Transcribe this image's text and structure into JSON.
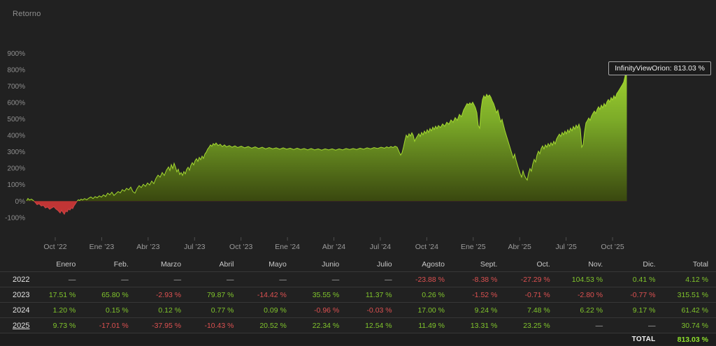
{
  "page": {
    "title_label": "Retorno"
  },
  "chart_data": {
    "type": "area",
    "title": "Retorno",
    "series_name": "InfinityViewOrion",
    "tooltip_text": "InfinityViewOrion: 813.03 %",
    "final_value_pct": 813.03,
    "ylim": [
      -100,
      900
    ],
    "y_ticks": [
      "900%",
      "800%",
      "700%",
      "600%",
      "500%",
      "400%",
      "300%",
      "200%",
      "100%",
      "0%",
      "-100%"
    ],
    "x_ticks": [
      "Oct ’22",
      "Ene ’23",
      "Abr ’23",
      "Jul ’23",
      "Oct ’23",
      "Ene ’24",
      "Abr ’24",
      "Jul ’24",
      "Oct ’24",
      "Ene ’25",
      "Abr ’25",
      "Jul ’25",
      "Oct ’25"
    ],
    "colors": {
      "positive_top": "#acdf33",
      "positive_mid": "#7cab28",
      "positive_bottom": "#39470f",
      "negative_fill": "#c13535",
      "line_positive": "#a3d82f",
      "line_negative": "#d04545"
    },
    "x_unit": "px along time axis Aug 2022 - Nov 2025",
    "y_unit": "cumulative return %",
    "points": [
      [
        38,
        2
      ],
      [
        40,
        16
      ],
      [
        42,
        6
      ],
      [
        45,
        12
      ],
      [
        48,
        2
      ],
      [
        50,
        -6
      ],
      [
        53,
        -22
      ],
      [
        56,
        -16
      ],
      [
        59,
        -30
      ],
      [
        62,
        -26
      ],
      [
        65,
        -42
      ],
      [
        68,
        -36
      ],
      [
        71,
        -50
      ],
      [
        74,
        -42
      ],
      [
        77,
        -34
      ],
      [
        80,
        -48
      ],
      [
        83,
        -58
      ],
      [
        86,
        -72
      ],
      [
        88,
        -56
      ],
      [
        90,
        -68
      ],
      [
        92,
        -80
      ],
      [
        94,
        -60
      ],
      [
        96,
        -66
      ],
      [
        98,
        -48
      ],
      [
        100,
        -55
      ],
      [
        102,
        -42
      ],
      [
        104,
        -46
      ],
      [
        106,
        -28
      ],
      [
        108,
        -16
      ],
      [
        110,
        -2
      ],
      [
        112,
        8
      ],
      [
        114,
        3
      ],
      [
        116,
        12
      ],
      [
        118,
        6
      ],
      [
        121,
        15
      ],
      [
        124,
        8
      ],
      [
        127,
        18
      ],
      [
        130,
        25
      ],
      [
        133,
        15
      ],
      [
        136,
        27
      ],
      [
        139,
        20
      ],
      [
        142,
        32
      ],
      [
        145,
        24
      ],
      [
        148,
        38
      ],
      [
        151,
        28
      ],
      [
        154,
        48
      ],
      [
        157,
        38
      ],
      [
        160,
        54
      ],
      [
        163,
        34
      ],
      [
        166,
        46
      ],
      [
        169,
        58
      ],
      [
        172,
        50
      ],
      [
        175,
        70
      ],
      [
        178,
        60
      ],
      [
        181,
        78
      ],
      [
        184,
        68
      ],
      [
        187,
        85
      ],
      [
        190,
        58
      ],
      [
        193,
        48
      ],
      [
        196,
        76
      ],
      [
        199,
        94
      ],
      [
        202,
        82
      ],
      [
        205,
        102
      ],
      [
        208,
        90
      ],
      [
        211,
        110
      ],
      [
        214,
        98
      ],
      [
        217,
        122
      ],
      [
        220,
        106
      ],
      [
        223,
        138
      ],
      [
        226,
        158
      ],
      [
        229,
        146
      ],
      [
        232,
        174
      ],
      [
        235,
        156
      ],
      [
        238,
        188
      ],
      [
        241,
        208
      ],
      [
        243,
        186
      ],
      [
        245,
        222
      ],
      [
        247,
        198
      ],
      [
        249,
        230
      ],
      [
        251,
        206
      ],
      [
        253,
        178
      ],
      [
        255,
        194
      ],
      [
        257,
        162
      ],
      [
        259,
        174
      ],
      [
        261,
        156
      ],
      [
        263,
        180
      ],
      [
        265,
        166
      ],
      [
        267,
        194
      ],
      [
        269,
        206
      ],
      [
        271,
        188
      ],
      [
        273,
        218
      ],
      [
        275,
        234
      ],
      [
        277,
        220
      ],
      [
        279,
        246
      ],
      [
        281,
        258
      ],
      [
        283,
        242
      ],
      [
        285,
        266
      ],
      [
        287,
        252
      ],
      [
        289,
        274
      ],
      [
        291,
        260
      ],
      [
        293,
        286
      ],
      [
        295,
        298
      ],
      [
        297,
        316
      ],
      [
        299,
        328
      ],
      [
        301,
        342
      ],
      [
        303,
        334
      ],
      [
        305,
        350
      ],
      [
        307,
        342
      ],
      [
        309,
        354
      ],
      [
        312,
        338
      ],
      [
        315,
        346
      ],
      [
        318,
        332
      ],
      [
        321,
        342
      ],
      [
        324,
        330
      ],
      [
        328,
        338
      ],
      [
        332,
        328
      ],
      [
        336,
        336
      ],
      [
        340,
        326
      ],
      [
        345,
        334
      ],
      [
        350,
        324
      ],
      [
        355,
        332
      ],
      [
        360,
        322
      ],
      [
        365,
        330
      ],
      [
        370,
        320
      ],
      [
        375,
        328
      ],
      [
        380,
        318
      ],
      [
        385,
        326
      ],
      [
        390,
        318
      ],
      [
        395,
        324
      ],
      [
        400,
        316
      ],
      [
        405,
        324
      ],
      [
        410,
        316
      ],
      [
        415,
        322
      ],
      [
        420,
        314
      ],
      [
        425,
        322
      ],
      [
        430,
        314
      ],
      [
        435,
        320
      ],
      [
        440,
        312
      ],
      [
        445,
        320
      ],
      [
        450,
        312
      ],
      [
        455,
        318
      ],
      [
        460,
        310
      ],
      [
        465,
        318
      ],
      [
        470,
        312
      ],
      [
        475,
        318
      ],
      [
        480,
        310
      ],
      [
        485,
        318
      ],
      [
        490,
        312
      ],
      [
        495,
        320
      ],
      [
        500,
        314
      ],
      [
        505,
        320
      ],
      [
        510,
        314
      ],
      [
        515,
        322
      ],
      [
        520,
        316
      ],
      [
        525,
        324
      ],
      [
        530,
        318
      ],
      [
        535,
        326
      ],
      [
        540,
        320
      ],
      [
        545,
        328
      ],
      [
        550,
        322
      ],
      [
        553,
        330
      ],
      [
        556,
        324
      ],
      [
        559,
        332
      ],
      [
        562,
        326
      ],
      [
        565,
        334
      ],
      [
        568,
        328
      ],
      [
        571,
        298
      ],
      [
        573,
        280
      ],
      [
        575,
        294
      ],
      [
        577,
        328
      ],
      [
        579,
        368
      ],
      [
        581,
        402
      ],
      [
        583,
        388
      ],
      [
        585,
        410
      ],
      [
        587,
        396
      ],
      [
        589,
        416
      ],
      [
        591,
        400
      ],
      [
        593,
        364
      ],
      [
        595,
        382
      ],
      [
        597,
        396
      ],
      [
        599,
        410
      ],
      [
        601,
        394
      ],
      [
        603,
        418
      ],
      [
        605,
        404
      ],
      [
        607,
        426
      ],
      [
        609,
        412
      ],
      [
        611,
        434
      ],
      [
        613,
        418
      ],
      [
        615,
        442
      ],
      [
        617,
        428
      ],
      [
        619,
        450
      ],
      [
        621,
        436
      ],
      [
        623,
        456
      ],
      [
        625,
        442
      ],
      [
        627,
        460
      ],
      [
        630,
        448
      ],
      [
        633,
        470
      ],
      [
        636,
        456
      ],
      [
        639,
        480
      ],
      [
        642,
        468
      ],
      [
        645,
        494
      ],
      [
        648,
        480
      ],
      [
        651,
        508
      ],
      [
        654,
        492
      ],
      [
        657,
        528
      ],
      [
        660,
        514
      ],
      [
        663,
        554
      ],
      [
        666,
        578
      ],
      [
        668,
        594
      ],
      [
        670,
        586
      ],
      [
        672,
        598
      ],
      [
        674,
        588
      ],
      [
        676,
        602
      ],
      [
        678,
        586
      ],
      [
        680,
        568
      ],
      [
        682,
        538
      ],
      [
        684,
        460
      ],
      [
        686,
        444
      ],
      [
        688,
        558
      ],
      [
        690,
        618
      ],
      [
        692,
        642
      ],
      [
        694,
        628
      ],
      [
        696,
        650
      ],
      [
        698,
        636
      ],
      [
        700,
        646
      ],
      [
        702,
        632
      ],
      [
        704,
        610
      ],
      [
        706,
        594
      ],
      [
        708,
        568
      ],
      [
        710,
        538
      ],
      [
        712,
        554
      ],
      [
        714,
        518
      ],
      [
        716,
        482
      ],
      [
        718,
        498
      ],
      [
        720,
        464
      ],
      [
        722,
        430
      ],
      [
        724,
        402
      ],
      [
        726,
        374
      ],
      [
        728,
        346
      ],
      [
        730,
        318
      ],
      [
        732,
        290
      ],
      [
        734,
        262
      ],
      [
        736,
        286
      ],
      [
        738,
        250
      ],
      [
        740,
        220
      ],
      [
        742,
        192
      ],
      [
        744,
        166
      ],
      [
        746,
        146
      ],
      [
        748,
        184
      ],
      [
        750,
        156
      ],
      [
        752,
        140
      ],
      [
        754,
        128
      ],
      [
        756,
        170
      ],
      [
        758,
        198
      ],
      [
        760,
        182
      ],
      [
        762,
        226
      ],
      [
        764,
        254
      ],
      [
        766,
        238
      ],
      [
        768,
        280
      ],
      [
        770,
        304
      ],
      [
        772,
        288
      ],
      [
        774,
        320
      ],
      [
        776,
        336
      ],
      [
        778,
        318
      ],
      [
        780,
        342
      ],
      [
        782,
        328
      ],
      [
        784,
        350
      ],
      [
        786,
        334
      ],
      [
        788,
        356
      ],
      [
        790,
        340
      ],
      [
        792,
        364
      ],
      [
        794,
        348
      ],
      [
        796,
        378
      ],
      [
        798,
        394
      ],
      [
        800,
        408
      ],
      [
        802,
        394
      ],
      [
        804,
        418
      ],
      [
        806,
        404
      ],
      [
        808,
        426
      ],
      [
        810,
        410
      ],
      [
        812,
        434
      ],
      [
        814,
        418
      ],
      [
        816,
        444
      ],
      [
        818,
        428
      ],
      [
        820,
        454
      ],
      [
        822,
        438
      ],
      [
        824,
        462
      ],
      [
        826,
        446
      ],
      [
        828,
        468
      ],
      [
        830,
        438
      ],
      [
        832,
        328
      ],
      [
        834,
        344
      ],
      [
        836,
        422
      ],
      [
        838,
        476
      ],
      [
        840,
        490
      ],
      [
        842,
        506
      ],
      [
        844,
        492
      ],
      [
        846,
        518
      ],
      [
        848,
        534
      ],
      [
        850,
        548
      ],
      [
        852,
        534
      ],
      [
        854,
        558
      ],
      [
        856,
        574
      ],
      [
        858,
        558
      ],
      [
        860,
        584
      ],
      [
        862,
        568
      ],
      [
        864,
        594
      ],
      [
        866,
        578
      ],
      [
        868,
        604
      ],
      [
        870,
        618
      ],
      [
        872,
        604
      ],
      [
        874,
        630
      ],
      [
        876,
        616
      ],
      [
        878,
        642
      ],
      [
        880,
        626
      ],
      [
        882,
        654
      ],
      [
        884,
        666
      ],
      [
        886,
        680
      ],
      [
        888,
        694
      ],
      [
        890,
        708
      ],
      [
        892,
        724
      ],
      [
        894,
        760
      ],
      [
        895,
        813
      ],
      [
        896,
        792
      ],
      [
        896.5,
        813
      ]
    ]
  },
  "table": {
    "headers": [
      "Enero",
      "Feb.",
      "Marzo",
      "Abril",
      "Mayo",
      "Junio",
      "Julio",
      "Agosto",
      "Sept.",
      "Oct.",
      "Nov.",
      "Dic.",
      "Total"
    ],
    "rows": [
      {
        "year": "2022",
        "underlined": false,
        "values": [
          "—",
          "—",
          "—",
          "—",
          "—",
          "—",
          "—",
          "-23.88 %",
          "-8.38 %",
          "-27.29 %",
          "104.53 %",
          "0.41 %",
          "4.12 %"
        ]
      },
      {
        "year": "2023",
        "underlined": false,
        "values": [
          "17.51 %",
          "65.80 %",
          "-2.93 %",
          "79.87 %",
          "-14.42 %",
          "35.55 %",
          "11.37 %",
          "0.26 %",
          "-1.52 %",
          "-0.71 %",
          "-2.80 %",
          "-0.77 %",
          "315.51 %"
        ]
      },
      {
        "year": "2024",
        "underlined": false,
        "values": [
          "1.20 %",
          "0.15 %",
          "0.12 %",
          "0.77 %",
          "0.09 %",
          "-0.96 %",
          "-0.03 %",
          "17.00 %",
          "9.24 %",
          "7.48 %",
          "6.22 %",
          "9.17 %",
          "61.42 %"
        ]
      },
      {
        "year": "2025",
        "underlined": true,
        "values": [
          "9.73 %",
          "-17.01 %",
          "-37.95 %",
          "-10.43 %",
          "20.52 %",
          "22.34 %",
          "12.54 %",
          "11.49 %",
          "13.31 %",
          "23.25 %",
          "—",
          "—",
          "30.74 %"
        ]
      }
    ],
    "total_label": "TOTAL",
    "total_value": "813.03 %"
  }
}
